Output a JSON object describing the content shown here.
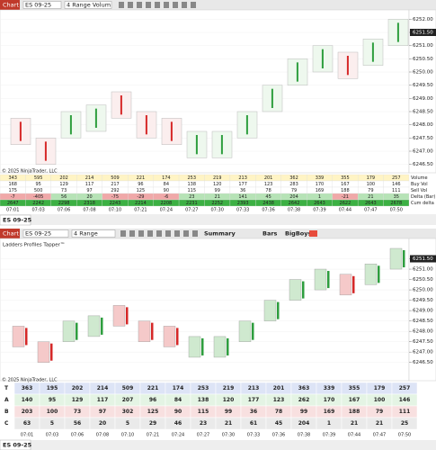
{
  "bars": {
    "high": [
      6248.25,
      6247.5,
      6248.5,
      6248.75,
      6249.25,
      6248.5,
      6248.25,
      6247.75,
      6247.75,
      6248.5,
      6249.5,
      6250.5,
      6251.0,
      6250.75,
      6251.25,
      6252.0
    ],
    "low": [
      6247.25,
      6246.5,
      6247.5,
      6247.75,
      6248.25,
      6247.5,
      6247.25,
      6246.75,
      6246.75,
      6247.5,
      6248.5,
      6249.5,
      6250.0,
      6249.75,
      6250.25,
      6251.0
    ]
  },
  "top": {
    "toolbar": {
      "tab": "Chart",
      "instrument": "ES 09-25",
      "period": "4 Range Volum"
    },
    "price_ticks": [
      {
        "value": 6252,
        "label": "6252.00"
      },
      {
        "value": 6251.5,
        "label": "6251.50"
      },
      {
        "value": 6251,
        "label": "6251.00"
      },
      {
        "value": 6250.5,
        "label": "6250.50"
      },
      {
        "value": 6250,
        "label": "6250.00"
      },
      {
        "value": 6249.5,
        "label": "6249.50"
      },
      {
        "value": 6249,
        "label": "6249.00"
      },
      {
        "value": 6248.5,
        "label": "6248.50"
      },
      {
        "value": 6248,
        "label": "6248.00"
      },
      {
        "value": 6247.5,
        "label": "6247.50"
      },
      {
        "value": 6247,
        "label": "6247.00"
      },
      {
        "value": 6246.5,
        "label": "6246.50"
      }
    ],
    "last_price": {
      "value": 6251.5,
      "label": "6251.50"
    },
    "times": [
      "07:01",
      "07:03",
      "07:06",
      "07:08",
      "07:10",
      "07:21",
      "07:24",
      "07:27",
      "07:30",
      "07:33",
      "07:36",
      "07:38",
      "07:39",
      "07:44",
      "07:47",
      "07:50"
    ],
    "table": {
      "labels": [
        "Volume",
        "Buy Vol",
        "Sell Vol",
        "Delta (Bar)",
        "Cum delta"
      ],
      "rows": [
        [
          343,
          595,
          202,
          214,
          509,
          221,
          174,
          253,
          219,
          213,
          201,
          362,
          339,
          355,
          179,
          257
        ],
        [
          168,
          95,
          129,
          117,
          217,
          96,
          84,
          138,
          120,
          177,
          123,
          283,
          170,
          167,
          100,
          146
        ],
        [
          175,
          500,
          73,
          97,
          292,
          125,
          90,
          115,
          99,
          36,
          78,
          79,
          169,
          188,
          79,
          111
        ],
        [
          -7,
          -405,
          56,
          20,
          -75,
          -29,
          -6,
          23,
          21,
          141,
          45,
          204,
          1,
          -21,
          21,
          35
        ],
        [
          2647,
          2242,
          2298,
          2318,
          2243,
          2214,
          2208,
          2231,
          2252,
          2393,
          2438,
          2642,
          2643,
          2622,
          2643,
          2678
        ]
      ]
    },
    "copyright": "© 2025 NinjaTrader, LLC",
    "tab": "ES 09-25"
  },
  "bottom": {
    "toolbar": {
      "tab": "Chart",
      "instrument": "ES 09-25",
      "period": "4 Range",
      "summary": "Summary",
      "bars": "Bars",
      "bigboys": "BigBoys:"
    },
    "title": "Ladders Profiles Tapper™",
    "price_ticks": [
      {
        "value": 6251.5,
        "label": "6251.50"
      },
      {
        "value": 6251,
        "label": "6251.00"
      },
      {
        "value": 6250.5,
        "label": "6250.50"
      },
      {
        "value": 6250,
        "label": "6250.00"
      },
      {
        "value": 6249.5,
        "label": "6249.50"
      },
      {
        "value": 6249,
        "label": "6249.00"
      },
      {
        "value": 6248.5,
        "label": "6248.50"
      },
      {
        "value": 6248,
        "label": "6248.00"
      },
      {
        "value": 6247.5,
        "label": "6247.50"
      },
      {
        "value": 6247,
        "label": "6247.00"
      },
      {
        "value": 6246.5,
        "label": "6246.50"
      }
    ],
    "last_price": {
      "value": 6251.5,
      "label": "6251.50"
    },
    "table": {
      "labels": [
        "T",
        "A",
        "B",
        "C"
      ],
      "rows": [
        [
          363,
          195,
          202,
          214,
          509,
          221,
          174,
          253,
          219,
          213,
          201,
          363,
          339,
          355,
          179,
          257
        ],
        [
          140,
          95,
          129,
          117,
          207,
          96,
          84,
          138,
          120,
          177,
          123,
          262,
          170,
          167,
          100,
          146
        ],
        [
          203,
          100,
          73,
          97,
          302,
          125,
          90,
          115,
          99,
          36,
          78,
          99,
          169,
          188,
          79,
          111
        ],
        [
          63,
          5,
          56,
          20,
          5,
          29,
          46,
          23,
          21,
          61,
          45,
          204,
          1,
          21,
          21,
          25
        ]
      ]
    },
    "copyright": "© 2025 NinjaTrader, LLC",
    "tab": "ES 09-25"
  }
}
